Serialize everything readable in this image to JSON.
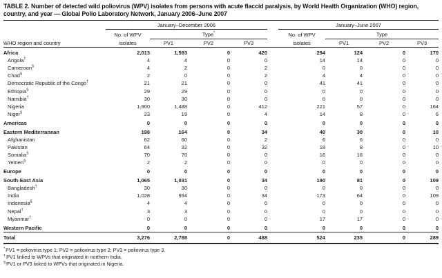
{
  "table": {
    "title": "TABLE 2. Number of detected wild poliovirus (WPV) isolates from persons with acute flaccid paralysis, by World Health Organization (WHO) region, country, and year — Global Polio Laboratory Network, January 2006–June 2007",
    "row_header": "WHO region and country",
    "col_groups": [
      {
        "period": "January–December 2006",
        "isolates_line1": "No. of WPV",
        "isolates_line2": "isolates",
        "type_label": "Type",
        "type_sup": "*",
        "type_cols": [
          "PV1",
          "PV2",
          "PV3"
        ]
      },
      {
        "period": "January–June 2007",
        "isolates_line1": "No. of WPV",
        "isolates_line2": "isolates",
        "type_label": "Type",
        "type_sup": "",
        "type_cols": [
          "PV1",
          "PV2",
          "PV3"
        ]
      }
    ],
    "rows": [
      {
        "label": "Africa",
        "sup": "",
        "kind": "region",
        "v": [
          "2,013",
          "1,593",
          "0",
          "420",
          "294",
          "124",
          "0",
          "170"
        ]
      },
      {
        "label": "Angola",
        "sup": "†",
        "kind": "country",
        "v": [
          "4",
          "4",
          "0",
          "0",
          "14",
          "14",
          "0",
          "0"
        ]
      },
      {
        "label": "Cameroon",
        "sup": "§",
        "kind": "country",
        "v": [
          "4",
          "2",
          "0",
          "2",
          "0",
          "0",
          "0",
          "0"
        ]
      },
      {
        "label": "Chad",
        "sup": "§",
        "kind": "country",
        "v": [
          "2",
          "0",
          "0",
          "2",
          "4",
          "4",
          "0",
          "0"
        ]
      },
      {
        "label": "Democratic Republic of the Congo",
        "sup": "†",
        "kind": "country",
        "v": [
          "21",
          "21",
          "0",
          "0",
          "41",
          "41",
          "0",
          "0"
        ]
      },
      {
        "label": "Ethiopia",
        "sup": "§",
        "kind": "country",
        "v": [
          "29",
          "29",
          "0",
          "0",
          "0",
          "0",
          "0",
          "0"
        ]
      },
      {
        "label": "Namibia",
        "sup": "†",
        "kind": "country",
        "v": [
          "30",
          "30",
          "0",
          "0",
          "0",
          "0",
          "0",
          "0"
        ]
      },
      {
        "label": "Nigeria",
        "sup": "",
        "kind": "country",
        "v": [
          "1,900",
          "1,488",
          "0",
          "412",
          "221",
          "57",
          "0",
          "164"
        ]
      },
      {
        "label": "Niger",
        "sup": "§",
        "kind": "country",
        "v": [
          "23",
          "19",
          "0",
          "4",
          "14",
          "8",
          "0",
          "6"
        ]
      },
      {
        "label": "Americas",
        "sup": "",
        "kind": "region",
        "v": [
          "0",
          "0",
          "0",
          "0",
          "0",
          "0",
          "0",
          "0"
        ]
      },
      {
        "label": "Eastern Mediterranean",
        "sup": "",
        "kind": "region",
        "v": [
          "198",
          "164",
          "0",
          "34",
          "40",
          "30",
          "0",
          "10"
        ]
      },
      {
        "label": "Afghanistan",
        "sup": "",
        "kind": "country",
        "v": [
          "62",
          "60",
          "0",
          "2",
          "6",
          "6",
          "0",
          "0"
        ]
      },
      {
        "label": "Pakistan",
        "sup": "",
        "kind": "country",
        "v": [
          "64",
          "32",
          "0",
          "32",
          "18",
          "8",
          "0",
          "10"
        ]
      },
      {
        "label": "Somalia",
        "sup": "§",
        "kind": "country",
        "v": [
          "70",
          "70",
          "0",
          "0",
          "16",
          "16",
          "0",
          "0"
        ]
      },
      {
        "label": "Yemen",
        "sup": "§",
        "kind": "country",
        "v": [
          "2",
          "2",
          "0",
          "0",
          "0",
          "0",
          "0",
          "0"
        ]
      },
      {
        "label": "Europe",
        "sup": "",
        "kind": "region",
        "v": [
          "0",
          "0",
          "0",
          "0",
          "0",
          "0",
          "0",
          "0"
        ]
      },
      {
        "label": "South-East Asia",
        "sup": "",
        "kind": "region",
        "v": [
          "1,065",
          "1,031",
          "0",
          "34",
          "190",
          "81",
          "0",
          "109"
        ]
      },
      {
        "label": "Bangladesh",
        "sup": "†",
        "kind": "country",
        "v": [
          "30",
          "30",
          "0",
          "0",
          "0",
          "0",
          "0",
          "0"
        ]
      },
      {
        "label": "India",
        "sup": "",
        "kind": "country",
        "v": [
          "1,028",
          "994",
          "0",
          "34",
          "173",
          "64",
          "0",
          "109"
        ]
      },
      {
        "label": "Indonesia",
        "sup": "§",
        "kind": "country",
        "v": [
          "4",
          "4",
          "0",
          "0",
          "0",
          "0",
          "0",
          "0"
        ]
      },
      {
        "label": "Nepal",
        "sup": "†",
        "kind": "country",
        "v": [
          "3",
          "3",
          "0",
          "0",
          "0",
          "0",
          "0",
          "0"
        ]
      },
      {
        "label": "Myanmar",
        "sup": "†",
        "kind": "country",
        "v": [
          "0",
          "0",
          "0",
          "0",
          "17",
          "17",
          "0",
          "0"
        ]
      },
      {
        "label": "Western Pacific",
        "sup": "",
        "kind": "region",
        "v": [
          "0",
          "0",
          "0",
          "0",
          "0",
          "0",
          "0",
          "0"
        ]
      },
      {
        "label": "Total",
        "sup": "",
        "kind": "total",
        "v": [
          "3,276",
          "2,788",
          "0",
          "488",
          "524",
          "235",
          "0",
          "289"
        ]
      }
    ],
    "footnotes": [
      {
        "marker": "*",
        "text": "PV1 = poliovirus type 1; PV2 = poliovirus type 2; PV3 = poliovirus type 3."
      },
      {
        "marker": "†",
        "text": "PV1 linked to WPVs that originated in northern India."
      },
      {
        "marker": "§",
        "text": "PV1 or PV3 linked to WPVs that originated in Nigeria."
      }
    ]
  }
}
